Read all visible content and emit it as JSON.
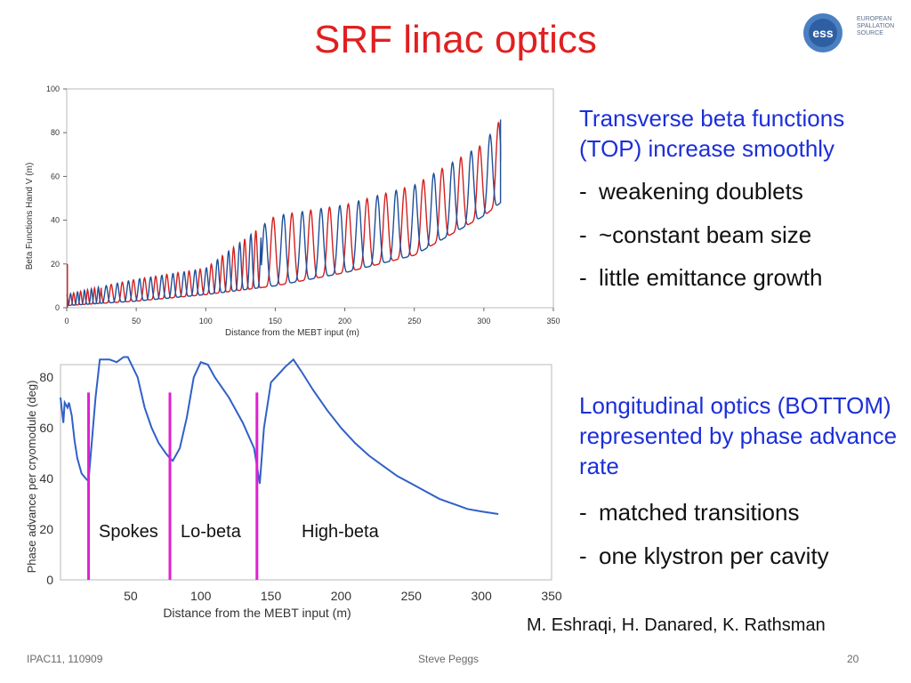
{
  "slide": {
    "title": "SRF linac optics",
    "logo": {
      "icon": "ess-logo",
      "text": [
        "EUROPEAN",
        "SPALLATION",
        "SOURCE"
      ]
    },
    "annotations": {
      "transverse": "Transverse beta functions (TOP) increase smoothly",
      "transverse_bullets": [
        "weakening doublets",
        "~constant beam size",
        "little emittance growth"
      ],
      "longitudinal": "Longitudinal optics (BOTTOM) represented by phase advance rate",
      "longitudinal_bullets": [
        "matched transitions",
        "one klystron per cavity"
      ],
      "bullet_marker": "-"
    },
    "credit": "M. Eshraqi, H. Danared, K. Rathsman",
    "footer": {
      "left": "IPAC11, 110909",
      "center": "Steve Peggs",
      "right": "20"
    }
  },
  "chart_data": [
    {
      "type": "line",
      "title": "",
      "xlabel": "Distance from the MEBT input (m)",
      "ylabel": "Beta Functions Hand V (m)",
      "xlim": [
        0,
        350
      ],
      "ylim": [
        0,
        100
      ],
      "xticks": [
        0,
        50,
        100,
        150,
        200,
        250,
        300,
        350
      ],
      "yticks": [
        0,
        20,
        40,
        60,
        80,
        100
      ],
      "grid": false,
      "colors": {
        "beta_h": "#d42020",
        "beta_v": "#1f4f9a"
      },
      "envelope": {
        "peak": {
          "x": [
            0,
            20,
            50,
            100,
            150,
            200,
            250,
            300,
            312
          ],
          "y": [
            6,
            9,
            13,
            18,
            42,
            47,
            56,
            75,
            86
          ]
        },
        "trough": {
          "x": [
            0,
            50,
            100,
            150,
            200,
            250,
            300,
            312
          ],
          "y": [
            1,
            3,
            6,
            10,
            16,
            24,
            42,
            48
          ]
        }
      },
      "series": [
        {
          "name": "beta H",
          "period_m": [
            5,
            15
          ],
          "x_range": [
            0,
            312
          ],
          "end_value": 67
        },
        {
          "name": "beta V",
          "period_m": [
            5,
            15
          ],
          "x_range": [
            0,
            312
          ],
          "end_value": 86
        }
      ]
    },
    {
      "type": "line",
      "title": "",
      "xlabel": "Distance from the MEBT input (m)",
      "ylabel": "Phase advance per cryomodule (deg)",
      "xlim": [
        0,
        350
      ],
      "ylim": [
        0,
        85
      ],
      "xticks": [
        50,
        100,
        150,
        200,
        250,
        300,
        350
      ],
      "yticks": [
        0,
        20,
        40,
        60,
        80
      ],
      "grid": false,
      "colors": {
        "line": "#3060c8",
        "transition": "#e020d0"
      },
      "series": [
        {
          "name": "phase advance",
          "x": [
            0,
            2,
            3,
            5,
            6,
            8,
            10,
            12,
            15,
            18,
            20,
            25,
            28,
            35,
            40,
            45,
            48,
            55,
            60,
            65,
            70,
            75,
            78,
            80,
            85,
            90,
            95,
            100,
            105,
            110,
            120,
            130,
            138,
            140,
            142,
            145,
            150,
            155,
            160,
            166,
            172,
            180,
            190,
            200,
            210,
            220,
            230,
            240,
            250,
            260,
            270,
            280,
            290,
            300,
            312
          ],
          "y": [
            72,
            62,
            70,
            68,
            70,
            65,
            55,
            48,
            42,
            40,
            39,
            72,
            87,
            87,
            86,
            88,
            88,
            80,
            68,
            60,
            54,
            50,
            48,
            47,
            52,
            64,
            80,
            86,
            85,
            80,
            72,
            62,
            52,
            45,
            38,
            60,
            78,
            81,
            84,
            87,
            82,
            75,
            67,
            60,
            54,
            49,
            45,
            41,
            38,
            35,
            32,
            30,
            28,
            27,
            26
          ]
        }
      ],
      "transitions_x": [
        20,
        78,
        140
      ],
      "region_labels": [
        "Spokes",
        "Lo-beta",
        "High-beta"
      ]
    }
  ]
}
